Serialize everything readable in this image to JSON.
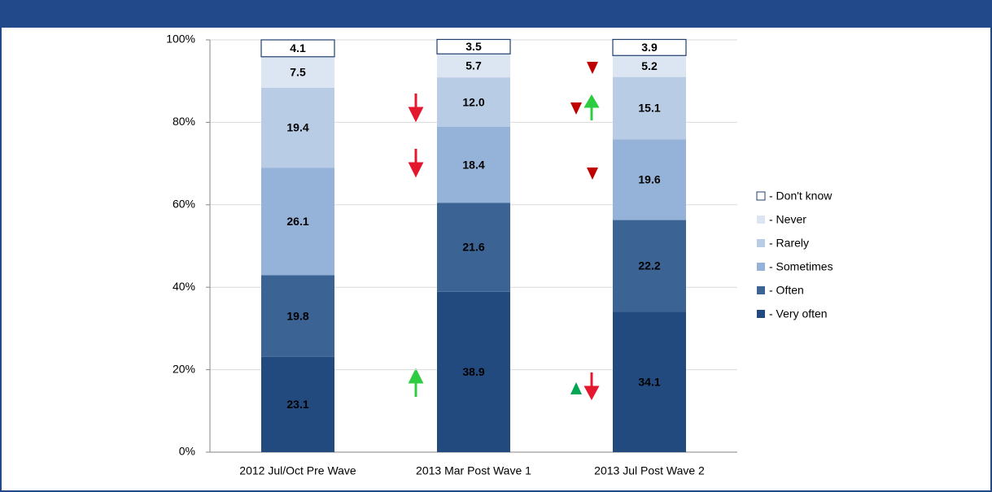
{
  "chart_data": {
    "type": "stacked_bar",
    "categories": [
      "2012 Jul/Oct Pre Wave",
      "2013 Mar Post Wave 1",
      "2013 Jul Post Wave 2"
    ],
    "series": [
      {
        "name": "- Very often",
        "color": "#234a7e",
        "values": [
          23.1,
          38.9,
          34.1
        ],
        "value_labels": [
          "23.1",
          "38.9",
          "34.1"
        ]
      },
      {
        "name": "- Often",
        "color": "#3b6394",
        "values": [
          19.8,
          21.6,
          22.2
        ],
        "value_labels": [
          "19.8",
          "21.6",
          "22.2"
        ]
      },
      {
        "name": "- Sometimes",
        "color": "#95b2d8",
        "values": [
          26.1,
          18.4,
          19.6
        ],
        "value_labels": [
          "26.1",
          "18.4",
          "19.6"
        ]
      },
      {
        "name": "- Rarely",
        "color": "#b9cce5",
        "values": [
          19.4,
          12.0,
          15.1
        ],
        "value_labels": [
          "19.4",
          "12.0",
          "15.1"
        ]
      },
      {
        "name": "- Never",
        "color": "#dce6f2",
        "values": [
          7.5,
          5.7,
          5.2
        ],
        "value_labels": [
          "7.5",
          "5.7",
          "5.2"
        ]
      },
      {
        "name": "- Don't know",
        "color": "#ffffff",
        "values": [
          4.1,
          3.5,
          3.9
        ],
        "value_labels": [
          "4.1",
          "3.5",
          "3.9"
        ]
      }
    ],
    "ylim": [
      0,
      100
    ],
    "yticks": [
      {
        "value": 0,
        "label": "0%"
      },
      {
        "value": 20,
        "label": "20%"
      },
      {
        "value": 40,
        "label": "40%"
      },
      {
        "value": 60,
        "label": "60%"
      },
      {
        "value": 80,
        "label": "80%"
      },
      {
        "value": 100,
        "label": "100%"
      }
    ],
    "grid": true
  }
}
